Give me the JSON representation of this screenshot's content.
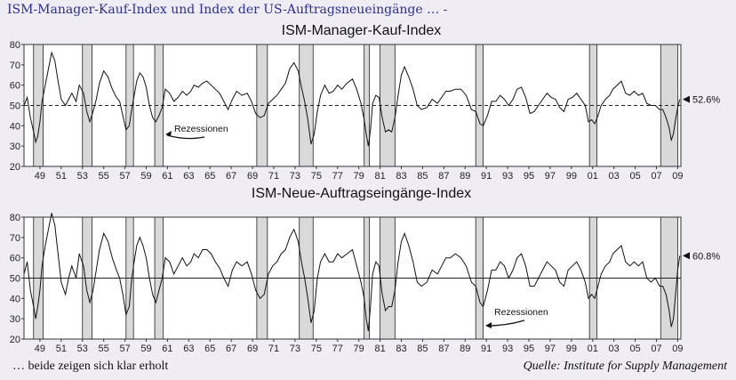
{
  "header": {
    "title": "ISM-Manager-Kauf-Index und Index der US-Auftragsneueingänge … -"
  },
  "footer": {
    "left": "… beide zeigen sich klar erholt",
    "source": "Quelle: Institute for Supply Management"
  },
  "colors": {
    "background": "#efedf3",
    "header": "#2a2f8f",
    "recession": "#d9d9d9",
    "line": "#111111"
  },
  "chart_data": [
    {
      "type": "line",
      "title": "ISM-Manager-Kauf-Index",
      "xlabel": "",
      "ylabel": "",
      "x_range": [
        1948,
        2009.8
      ],
      "ylim": [
        20,
        80
      ],
      "yticks": [
        20,
        30,
        40,
        50,
        60,
        70,
        80
      ],
      "xtick_labels": [
        "49",
        "51",
        "53",
        "55",
        "57",
        "59",
        "61",
        "63",
        "65",
        "67",
        "69",
        "71",
        "73",
        "75",
        "77",
        "79",
        "81",
        "83",
        "85",
        "87",
        "89",
        "91",
        "93",
        "95",
        "97",
        "99",
        "01",
        "03",
        "05",
        "07",
        "09"
      ],
      "reference_line": {
        "value": 50,
        "style": "dashed"
      },
      "last_value_label": "52.6%",
      "annotation": "Rezessionen",
      "recessions": [
        [
          1948.9,
          1949.8
        ],
        [
          1953.5,
          1954.4
        ],
        [
          1957.6,
          1958.3
        ],
        [
          1960.3,
          1961.1
        ],
        [
          1969.9,
          1970.9
        ],
        [
          1973.9,
          1975.2
        ],
        [
          1980.0,
          1980.5
        ],
        [
          1981.5,
          1982.9
        ],
        [
          1990.5,
          1991.2
        ],
        [
          2001.2,
          2001.9
        ],
        [
          2007.9,
          2009.5
        ]
      ],
      "series": [
        {
          "x": [
            1948.0,
            1948.3,
            1948.6,
            1948.9,
            1949.1,
            1949.3,
            1949.5,
            1949.7,
            1950.0,
            1950.3,
            1950.6,
            1950.9,
            1951.2,
            1951.5,
            1951.9,
            1952.2,
            1952.5,
            1952.9,
            1953.2,
            1953.6,
            1953.9,
            1954.2,
            1954.5,
            1954.8,
            1955.1,
            1955.5,
            1955.9,
            1956.3,
            1956.7,
            1957.0,
            1957.3,
            1957.6,
            1957.9,
            1958.1,
            1958.3,
            1958.6,
            1958.9,
            1959.2,
            1959.5,
            1959.8,
            1960.1,
            1960.4,
            1960.7,
            1961.0,
            1961.3,
            1961.7,
            1962.1,
            1962.5,
            1962.9,
            1963.3,
            1963.7,
            1964.0,
            1964.4,
            1964.8,
            1965.2,
            1965.6,
            1966.0,
            1966.4,
            1966.8,
            1967.2,
            1967.6,
            1968.0,
            1968.5,
            1969.0,
            1969.4,
            1969.8,
            1970.2,
            1970.6,
            1971.0,
            1971.4,
            1971.8,
            1972.2,
            1972.6,
            1973.0,
            1973.4,
            1973.8,
            1974.1,
            1974.4,
            1974.7,
            1975.0,
            1975.3,
            1975.6,
            1975.9,
            1976.3,
            1976.7,
            1977.1,
            1977.5,
            1977.9,
            1978.4,
            1978.9,
            1979.3,
            1979.7,
            1980.0,
            1980.2,
            1980.4,
            1980.6,
            1980.8,
            1981.1,
            1981.4,
            1981.7,
            1982.0,
            1982.3,
            1982.6,
            1982.9,
            1983.2,
            1983.5,
            1983.8,
            1984.2,
            1984.6,
            1985.0,
            1985.4,
            1985.9,
            1986.4,
            1986.9,
            1987.3,
            1987.7,
            1988.1,
            1988.6,
            1989.1,
            1989.6,
            1990.1,
            1990.5,
            1990.9,
            1991.2,
            1991.6,
            1992.0,
            1992.4,
            1992.8,
            1993.2,
            1993.6,
            1994.0,
            1994.4,
            1994.8,
            1995.2,
            1995.6,
            1996.0,
            1996.4,
            1996.8,
            1997.2,
            1997.6,
            1998.0,
            1998.4,
            1998.8,
            1999.2,
            1999.6,
            2000.0,
            2000.4,
            2000.8,
            2001.1,
            2001.4,
            2001.7,
            2002.0,
            2002.3,
            2002.7,
            2003.1,
            2003.4,
            2003.8,
            2004.2,
            2004.6,
            2005.0,
            2005.4,
            2005.8,
            2006.2,
            2006.6,
            2007.0,
            2007.4,
            2007.8,
            2008.1,
            2008.4,
            2008.7,
            2008.9,
            2009.1,
            2009.3,
            2009.5,
            2009.7
          ],
          "y": [
            50,
            54,
            44,
            37,
            32,
            35,
            42,
            52,
            60,
            68,
            76,
            72,
            62,
            53,
            50,
            53,
            56,
            52,
            60,
            56,
            47,
            42,
            47,
            53,
            61,
            67,
            64,
            58,
            54,
            52,
            45,
            38,
            40,
            47,
            53,
            62,
            66,
            64,
            59,
            50,
            44,
            42,
            45,
            49,
            58,
            56,
            52,
            54,
            57,
            55,
            57,
            60,
            59,
            61,
            62,
            60,
            58,
            56,
            52,
            48,
            53,
            57,
            55,
            56,
            52,
            46,
            44,
            45,
            51,
            53,
            55,
            58,
            61,
            68,
            71,
            67,
            59,
            52,
            43,
            31,
            36,
            47,
            55,
            60,
            56,
            57,
            60,
            58,
            61,
            63,
            58,
            51,
            43,
            36,
            30,
            38,
            51,
            55,
            54,
            44,
            37,
            38,
            37,
            44,
            55,
            65,
            69,
            64,
            58,
            50,
            48,
            49,
            53,
            51,
            54,
            57,
            57,
            58,
            58,
            55,
            48,
            47,
            41,
            40,
            45,
            52,
            52,
            55,
            53,
            50,
            53,
            58,
            59,
            54,
            46,
            47,
            50,
            53,
            56,
            54,
            53,
            49,
            47,
            53,
            54,
            56,
            53,
            50,
            42,
            43,
            41,
            45,
            50,
            53,
            55,
            58,
            60,
            62,
            56,
            55,
            57,
            55,
            56,
            51,
            50,
            50,
            48,
            48,
            44,
            39,
            33,
            36,
            43,
            49,
            53
          ]
        }
      ]
    },
    {
      "type": "line",
      "title": "ISM-Neue-Auftragseingänge-Index",
      "xlabel": "",
      "ylabel": "",
      "x_range": [
        1948,
        2009.8
      ],
      "ylim": [
        20,
        80
      ],
      "yticks": [
        20,
        30,
        40,
        50,
        60,
        70,
        80
      ],
      "xtick_labels": [
        "49",
        "51",
        "53",
        "55",
        "57",
        "59",
        "61",
        "63",
        "65",
        "67",
        "69",
        "71",
        "73",
        "75",
        "77",
        "79",
        "81",
        "83",
        "85",
        "87",
        "89",
        "91",
        "93",
        "95",
        "97",
        "99",
        "01",
        "03",
        "05",
        "07",
        "09"
      ],
      "reference_line": {
        "value": 50,
        "style": "solid"
      },
      "last_value_label": "60.8%",
      "annotation": "Rezessionen",
      "recessions": [
        [
          1948.9,
          1949.8
        ],
        [
          1953.5,
          1954.4
        ],
        [
          1957.6,
          1958.3
        ],
        [
          1960.3,
          1961.1
        ],
        [
          1969.9,
          1970.9
        ],
        [
          1973.9,
          1975.2
        ],
        [
          1980.0,
          1980.5
        ],
        [
          1981.5,
          1982.9
        ],
        [
          1990.5,
          1991.2
        ],
        [
          2001.2,
          2001.9
        ],
        [
          2007.9,
          2009.5
        ]
      ],
      "series": [
        {
          "x": [
            1948.0,
            1948.3,
            1948.6,
            1948.9,
            1949.1,
            1949.3,
            1949.5,
            1949.7,
            1950.0,
            1950.3,
            1950.6,
            1950.9,
            1951.2,
            1951.5,
            1951.9,
            1952.2,
            1952.5,
            1952.9,
            1953.2,
            1953.6,
            1953.9,
            1954.2,
            1954.5,
            1954.8,
            1955.1,
            1955.5,
            1955.9,
            1956.3,
            1956.7,
            1957.0,
            1957.3,
            1957.6,
            1957.9,
            1958.1,
            1958.3,
            1958.6,
            1958.9,
            1959.2,
            1959.5,
            1959.8,
            1960.1,
            1960.4,
            1960.7,
            1961.0,
            1961.3,
            1961.7,
            1962.1,
            1962.5,
            1962.9,
            1963.3,
            1963.7,
            1964.0,
            1964.4,
            1964.8,
            1965.2,
            1965.6,
            1966.0,
            1966.4,
            1966.8,
            1967.2,
            1967.6,
            1968.0,
            1968.5,
            1969.0,
            1969.4,
            1969.8,
            1970.2,
            1970.6,
            1971.0,
            1971.4,
            1971.8,
            1972.2,
            1972.6,
            1973.0,
            1973.4,
            1973.8,
            1974.1,
            1974.4,
            1974.7,
            1975.0,
            1975.3,
            1975.6,
            1975.9,
            1976.3,
            1976.7,
            1977.1,
            1977.5,
            1977.9,
            1978.4,
            1978.9,
            1979.3,
            1979.7,
            1980.0,
            1980.2,
            1980.4,
            1980.6,
            1980.8,
            1981.1,
            1981.4,
            1981.7,
            1982.0,
            1982.3,
            1982.6,
            1982.9,
            1983.2,
            1983.5,
            1983.8,
            1984.2,
            1984.6,
            1985.0,
            1985.4,
            1985.9,
            1986.4,
            1986.9,
            1987.3,
            1987.7,
            1988.1,
            1988.6,
            1989.1,
            1989.6,
            1990.1,
            1990.5,
            1990.9,
            1991.2,
            1991.6,
            1992.0,
            1992.4,
            1992.8,
            1993.2,
            1993.6,
            1994.0,
            1994.4,
            1994.8,
            1995.2,
            1995.6,
            1996.0,
            1996.4,
            1996.8,
            1997.2,
            1997.6,
            1998.0,
            1998.4,
            1998.8,
            1999.2,
            1999.6,
            2000.0,
            2000.4,
            2000.8,
            2001.1,
            2001.4,
            2001.7,
            2002.0,
            2002.3,
            2002.7,
            2003.1,
            2003.4,
            2003.8,
            2004.2,
            2004.6,
            2005.0,
            2005.4,
            2005.8,
            2006.2,
            2006.6,
            2007.0,
            2007.4,
            2007.8,
            2008.1,
            2008.4,
            2008.7,
            2008.9,
            2009.1,
            2009.3,
            2009.5,
            2009.7
          ],
          "y": [
            52,
            58,
            44,
            36,
            30,
            36,
            44,
            56,
            66,
            74,
            82,
            76,
            62,
            48,
            42,
            50,
            56,
            50,
            62,
            56,
            44,
            38,
            44,
            54,
            64,
            72,
            68,
            60,
            54,
            50,
            42,
            32,
            36,
            48,
            56,
            66,
            70,
            66,
            60,
            50,
            42,
            38,
            44,
            50,
            60,
            58,
            52,
            56,
            60,
            56,
            58,
            62,
            60,
            64,
            64,
            62,
            58,
            55,
            50,
            46,
            54,
            58,
            56,
            58,
            52,
            44,
            40,
            42,
            52,
            56,
            58,
            62,
            64,
            70,
            74,
            68,
            58,
            50,
            40,
            28,
            34,
            50,
            58,
            62,
            58,
            58,
            62,
            60,
            62,
            64,
            56,
            48,
            40,
            30,
            24,
            36,
            52,
            58,
            56,
            42,
            34,
            36,
            36,
            44,
            58,
            68,
            72,
            66,
            58,
            48,
            46,
            48,
            54,
            52,
            56,
            60,
            60,
            62,
            60,
            56,
            48,
            46,
            38,
            36,
            44,
            54,
            54,
            58,
            56,
            50,
            54,
            60,
            62,
            56,
            46,
            46,
            50,
            54,
            58,
            56,
            54,
            48,
            46,
            54,
            56,
            58,
            54,
            48,
            40,
            42,
            40,
            46,
            52,
            56,
            58,
            62,
            64,
            66,
            58,
            56,
            58,
            56,
            58,
            50,
            48,
            50,
            46,
            46,
            42,
            34,
            26,
            30,
            42,
            54,
            61
          ]
        }
      ]
    }
  ]
}
